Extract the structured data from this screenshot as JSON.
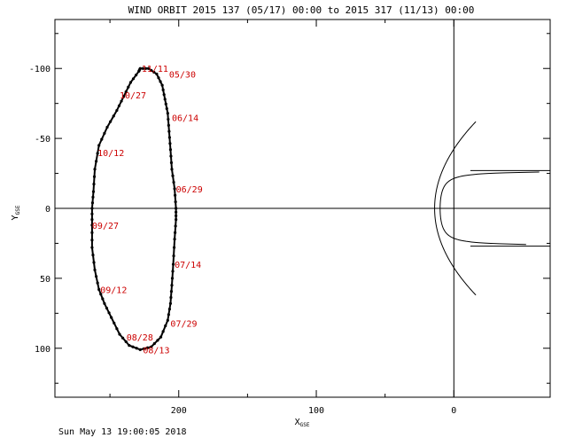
{
  "chart_data": {
    "type": "scatter",
    "title": "WIND ORBIT 2015 137 (05/17) 00:00 to 2015 317 (11/13) 00:00",
    "xlabel": {
      "main": "X",
      "sub": "GSE"
    },
    "ylabel": {
      "main": "Y",
      "sub": "GSE"
    },
    "xlim": [
      290,
      -70
    ],
    "ylim": [
      -135,
      135
    ],
    "y_inverted": true,
    "x_ticks": [
      {
        "value": 200,
        "label": "200"
      },
      {
        "value": 100,
        "label": "100"
      },
      {
        "value": 0,
        "label": "0"
      }
    ],
    "y_ticks": [
      {
        "value": -100,
        "label": "-100"
      },
      {
        "value": -50,
        "label": "-50"
      },
      {
        "value": 0,
        "label": "0"
      },
      {
        "value": 50,
        "label": "50"
      },
      {
        "value": 100,
        "label": "100"
      }
    ],
    "orbit": {
      "color": "#000000",
      "points": [
        [
          228,
          -100
        ],
        [
          222,
          -100
        ],
        [
          216,
          -96
        ],
        [
          212,
          -88
        ],
        [
          210,
          -78
        ],
        [
          208,
          -68
        ],
        [
          207,
          -55
        ],
        [
          206,
          -42
        ],
        [
          205,
          -28
        ],
        [
          203,
          -14
        ],
        [
          202,
          0
        ],
        [
          202,
          8
        ],
        [
          203,
          22
        ],
        [
          204,
          40
        ],
        [
          205,
          55
        ],
        [
          206,
          68
        ],
        [
          208,
          80
        ],
        [
          213,
          92
        ],
        [
          220,
          99
        ],
        [
          228,
          101
        ],
        [
          236,
          98
        ],
        [
          243,
          90
        ],
        [
          249,
          78
        ],
        [
          254,
          68
        ],
        [
          258,
          58
        ],
        [
          261,
          44
        ],
        [
          263,
          28
        ],
        [
          263,
          12
        ],
        [
          263,
          0
        ],
        [
          262,
          -12
        ],
        [
          261,
          -28
        ],
        [
          258,
          -45
        ],
        [
          252,
          -58
        ],
        [
          245,
          -70
        ],
        [
          240,
          -80
        ],
        [
          235,
          -90
        ],
        [
          229,
          -98
        ],
        [
          228,
          -100
        ]
      ]
    },
    "date_labels": [
      {
        "text": "11/11",
        "x": 227,
        "y": -100
      },
      {
        "text": "05/30",
        "x": 207,
        "y": -96
      },
      {
        "text": "10/27",
        "x": 243,
        "y": -81
      },
      {
        "text": "06/14",
        "x": 205,
        "y": -65
      },
      {
        "text": "10/12",
        "x": 259,
        "y": -40
      },
      {
        "text": "06/29",
        "x": 202,
        "y": -14
      },
      {
        "text": "09/27",
        "x": 263,
        "y": 12
      },
      {
        "text": "07/14",
        "x": 203,
        "y": 40
      },
      {
        "text": "09/12",
        "x": 257,
        "y": 58
      },
      {
        "text": "07/29",
        "x": 206,
        "y": 82
      },
      {
        "text": "08/28",
        "x": 238,
        "y": 92
      },
      {
        "text": "08/13",
        "x": 226,
        "y": 101
      }
    ],
    "bow_shock": {
      "color": "#000000",
      "nose_x": 14,
      "y_extent": [
        -62,
        62
      ],
      "flare_c": 0.0078
    },
    "magnetopause": {
      "color": "#000000",
      "nose_x": 10,
      "asymptote_y": 27,
      "scale": 17
    }
  },
  "footer": {
    "timestamp": "Sun May 13 19:00:05 2018"
  }
}
